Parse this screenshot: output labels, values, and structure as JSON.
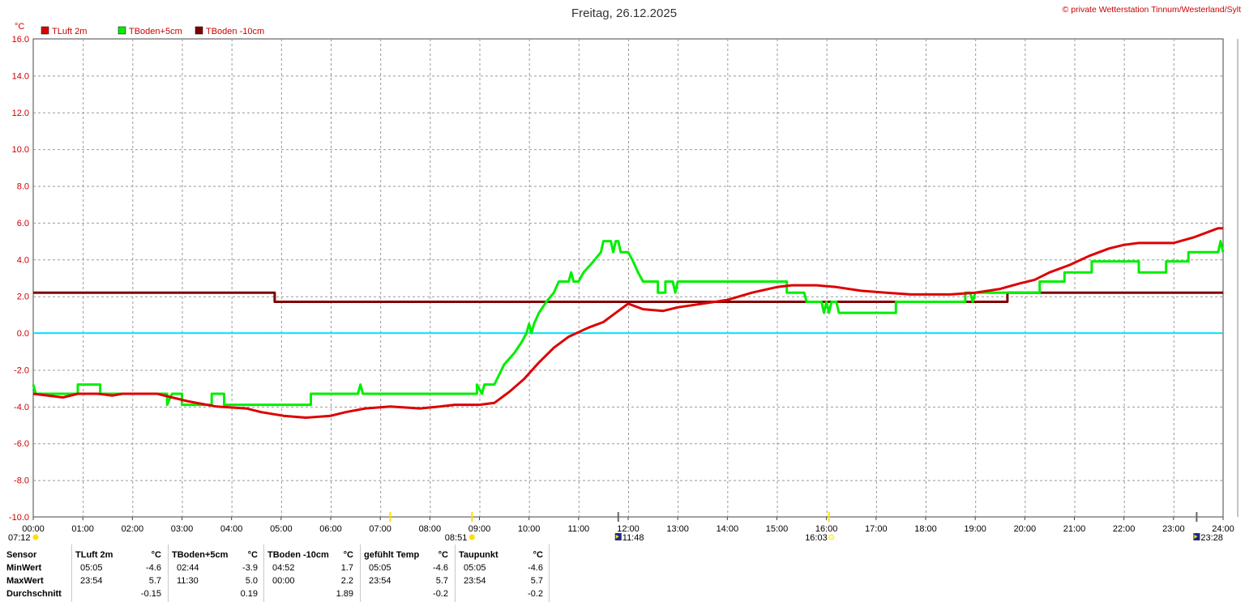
{
  "title": "Freitag, 26.12.2025",
  "credit": "© private Wetterstation Tinnum/Westerland/Sylt",
  "colors": {
    "tluft": "#dd0000",
    "tboden5": "#00ee00",
    "tboden10": "#800000",
    "zero_line": "#00e5ff",
    "grid": "#999999",
    "sun": "#ffdd00"
  },
  "chart_data": {
    "type": "line",
    "yunit": "°C",
    "ylim": [
      -10,
      16
    ],
    "yticks": [
      "16.0",
      "14.0",
      "12.0",
      "10.0",
      "8.0",
      "6.0",
      "4.0",
      "2.0",
      "0.0",
      "-2.0",
      "-4.0",
      "-6.0",
      "-8.0",
      "-10.0"
    ],
    "xlim": [
      0,
      24
    ],
    "xticks": [
      "00:00",
      "01:00",
      "02:00",
      "03:00",
      "04:00",
      "05:00",
      "06:00",
      "07:00",
      "08:00",
      "09:00",
      "10:00",
      "11:00",
      "12:00",
      "13:00",
      "14:00",
      "15:00",
      "16:00",
      "17:00",
      "18:00",
      "19:00",
      "20:00",
      "21:00",
      "22:00",
      "23:00",
      "24:00"
    ],
    "grid": true,
    "legend_position": "top-left",
    "series": [
      {
        "name": "TLuft 2m",
        "color": "#dd0000",
        "points": [
          [
            0,
            -3.3
          ],
          [
            0.3,
            -3.4
          ],
          [
            0.6,
            -3.5
          ],
          [
            0.9,
            -3.3
          ],
          [
            1.3,
            -3.3
          ],
          [
            1.6,
            -3.4
          ],
          [
            1.8,
            -3.3
          ],
          [
            2.5,
            -3.3
          ],
          [
            2.8,
            -3.5
          ],
          [
            3.1,
            -3.7
          ],
          [
            3.3,
            -3.8
          ],
          [
            3.7,
            -4.0
          ],
          [
            4.3,
            -4.1
          ],
          [
            4.6,
            -4.3
          ],
          [
            5.05,
            -4.5
          ],
          [
            5.5,
            -4.6
          ],
          [
            6.0,
            -4.5
          ],
          [
            6.3,
            -4.3
          ],
          [
            6.7,
            -4.1
          ],
          [
            7.2,
            -4.0
          ],
          [
            7.8,
            -4.1
          ],
          [
            8.2,
            -4.0
          ],
          [
            8.5,
            -3.9
          ],
          [
            9.0,
            -3.9
          ],
          [
            9.3,
            -3.8
          ],
          [
            9.6,
            -3.2
          ],
          [
            9.9,
            -2.5
          ],
          [
            10.2,
            -1.6
          ],
          [
            10.5,
            -0.8
          ],
          [
            10.8,
            -0.2
          ],
          [
            11.2,
            0.3
          ],
          [
            11.5,
            0.6
          ],
          [
            11.8,
            1.2
          ],
          [
            12.0,
            1.6
          ],
          [
            12.3,
            1.3
          ],
          [
            12.7,
            1.2
          ],
          [
            13.0,
            1.4
          ],
          [
            13.5,
            1.6
          ],
          [
            14.0,
            1.8
          ],
          [
            14.5,
            2.2
          ],
          [
            15.0,
            2.5
          ],
          [
            15.3,
            2.6
          ],
          [
            15.8,
            2.6
          ],
          [
            16.2,
            2.5
          ],
          [
            16.7,
            2.3
          ],
          [
            17.2,
            2.2
          ],
          [
            17.7,
            2.1
          ],
          [
            18.5,
            2.1
          ],
          [
            19.0,
            2.2
          ],
          [
            19.5,
            2.4
          ],
          [
            19.9,
            2.7
          ],
          [
            20.2,
            2.9
          ],
          [
            20.5,
            3.3
          ],
          [
            20.9,
            3.7
          ],
          [
            21.3,
            4.2
          ],
          [
            21.7,
            4.6
          ],
          [
            22.0,
            4.8
          ],
          [
            22.3,
            4.9
          ],
          [
            22.7,
            4.9
          ],
          [
            23.0,
            4.9
          ],
          [
            23.4,
            5.2
          ],
          [
            23.7,
            5.5
          ],
          [
            23.9,
            5.7
          ],
          [
            24.0,
            5.7
          ]
        ]
      },
      {
        "name": "TBoden+5cm",
        "color": "#00ee00",
        "points": [
          [
            0,
            -2.8
          ],
          [
            0.05,
            -3.3
          ],
          [
            0.9,
            -3.3
          ],
          [
            0.9,
            -2.8
          ],
          [
            1.35,
            -2.8
          ],
          [
            1.35,
            -3.3
          ],
          [
            2.7,
            -3.3
          ],
          [
            2.7,
            -3.9
          ],
          [
            2.8,
            -3.3
          ],
          [
            3.0,
            -3.3
          ],
          [
            3.0,
            -3.9
          ],
          [
            3.6,
            -3.9
          ],
          [
            3.6,
            -3.3
          ],
          [
            3.85,
            -3.3
          ],
          [
            3.85,
            -3.9
          ],
          [
            5.6,
            -3.9
          ],
          [
            5.6,
            -3.3
          ],
          [
            6.55,
            -3.3
          ],
          [
            6.6,
            -2.8
          ],
          [
            6.65,
            -3.3
          ],
          [
            8.95,
            -3.3
          ],
          [
            8.95,
            -2.8
          ],
          [
            9.05,
            -3.3
          ],
          [
            9.1,
            -2.8
          ],
          [
            9.3,
            -2.8
          ],
          [
            9.5,
            -1.7
          ],
          [
            9.7,
            -1.1
          ],
          [
            9.85,
            -0.5
          ],
          [
            9.95,
            0.0
          ],
          [
            10.0,
            0.5
          ],
          [
            10.05,
            0.0
          ],
          [
            10.1,
            0.5
          ],
          [
            10.2,
            1.1
          ],
          [
            10.35,
            1.7
          ],
          [
            10.5,
            2.2
          ],
          [
            10.6,
            2.8
          ],
          [
            10.8,
            2.8
          ],
          [
            10.85,
            3.3
          ],
          [
            10.9,
            2.8
          ],
          [
            11.0,
            2.8
          ],
          [
            11.1,
            3.3
          ],
          [
            11.3,
            3.9
          ],
          [
            11.45,
            4.4
          ],
          [
            11.5,
            5.0
          ],
          [
            11.65,
            5.0
          ],
          [
            11.7,
            4.4
          ],
          [
            11.75,
            5.0
          ],
          [
            11.8,
            5.0
          ],
          [
            11.85,
            4.4
          ],
          [
            12.0,
            4.4
          ],
          [
            12.1,
            3.9
          ],
          [
            12.2,
            3.3
          ],
          [
            12.3,
            2.8
          ],
          [
            12.6,
            2.8
          ],
          [
            12.6,
            2.2
          ],
          [
            12.75,
            2.2
          ],
          [
            12.75,
            2.8
          ],
          [
            12.9,
            2.8
          ],
          [
            12.95,
            2.2
          ],
          [
            13.0,
            2.8
          ],
          [
            15.2,
            2.8
          ],
          [
            15.2,
            2.2
          ],
          [
            15.55,
            2.2
          ],
          [
            15.6,
            1.7
          ],
          [
            15.9,
            1.7
          ],
          [
            15.95,
            1.1
          ],
          [
            16.0,
            1.7
          ],
          [
            16.05,
            1.1
          ],
          [
            16.1,
            1.7
          ],
          [
            16.2,
            1.7
          ],
          [
            16.25,
            1.1
          ],
          [
            17.4,
            1.1
          ],
          [
            17.4,
            1.7
          ],
          [
            18.8,
            1.7
          ],
          [
            18.8,
            2.2
          ],
          [
            18.9,
            2.2
          ],
          [
            18.95,
            1.7
          ],
          [
            19.0,
            2.2
          ],
          [
            19.6,
            2.2
          ],
          [
            20.3,
            2.2
          ],
          [
            20.3,
            2.8
          ],
          [
            20.8,
            2.8
          ],
          [
            20.8,
            3.3
          ],
          [
            21.35,
            3.3
          ],
          [
            21.35,
            3.9
          ],
          [
            22.3,
            3.9
          ],
          [
            22.3,
            3.3
          ],
          [
            22.85,
            3.3
          ],
          [
            22.85,
            3.9
          ],
          [
            23.3,
            3.9
          ],
          [
            23.3,
            4.4
          ],
          [
            23.9,
            4.4
          ],
          [
            23.95,
            5.0
          ],
          [
            24.0,
            4.4
          ]
        ]
      },
      {
        "name": "TBoden -10cm",
        "color": "#800000",
        "points": [
          [
            0,
            2.2
          ],
          [
            4.87,
            2.2
          ],
          [
            4.87,
            1.7
          ],
          [
            19.65,
            1.7
          ],
          [
            19.65,
            2.2
          ],
          [
            24,
            2.2
          ]
        ]
      }
    ],
    "reference_line": {
      "y": 0.0,
      "color": "#00e5ff"
    },
    "annotations": {
      "sunrise": "07:12",
      "sunset": "16:03",
      "moon_events": [
        "08:51",
        "11:48",
        "23:28"
      ]
    }
  },
  "stats": {
    "row_labels": [
      "Sensor",
      "MinWert",
      "MaxWert",
      "Durchschnitt"
    ],
    "columns": [
      {
        "sensor": "TLuft 2m",
        "unit": "°C",
        "min_time": "05:05",
        "min_val": "-4.6",
        "max_time": "23:54",
        "max_val": "5.7",
        "avg": "-0.15"
      },
      {
        "sensor": "TBoden+5cm",
        "unit": "°C",
        "min_time": "02:44",
        "min_val": "-3.9",
        "max_time": "11:30",
        "max_val": "5.0",
        "avg": "0.19"
      },
      {
        "sensor": "TBoden -10cm",
        "unit": "°C",
        "min_time": "04:52",
        "min_val": "1.7",
        "max_time": "00:00",
        "max_val": "2.2",
        "avg": "1.89"
      },
      {
        "sensor": "gefühlt Temp",
        "unit": "°C",
        "min_time": "05:05",
        "min_val": "-4.6",
        "max_time": "23:54",
        "max_val": "5.7",
        "avg": "-0.2"
      },
      {
        "sensor": "Taupunkt",
        "unit": "°C",
        "min_time": "05:05",
        "min_val": "-4.6",
        "max_time": "23:54",
        "max_val": "5.7",
        "avg": "-0.2"
      }
    ]
  }
}
